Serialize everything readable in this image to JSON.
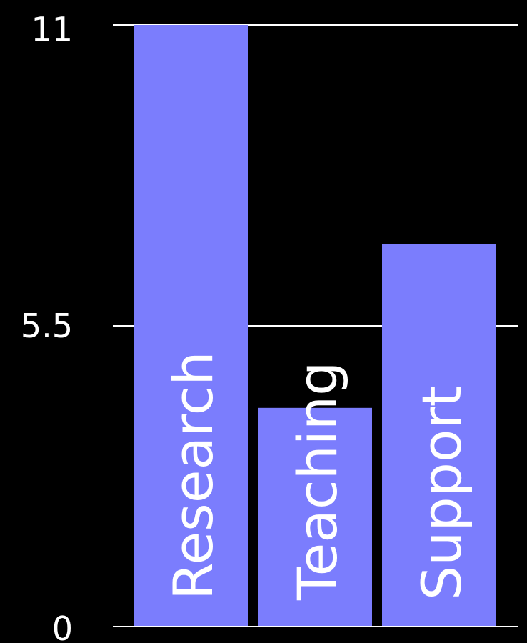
{
  "chart_data": {
    "type": "bar",
    "categories": [
      "Research",
      "Teaching",
      "Support"
    ],
    "values": [
      11,
      4,
      7
    ],
    "ylim": [
      0,
      11
    ],
    "yticks": [
      "0",
      "5.5",
      "11"
    ],
    "ytick_values": [
      0,
      5.5,
      11
    ],
    "grid": true,
    "title": "",
    "xlabel": "",
    "ylabel": ""
  },
  "colors": {
    "background": "#000000",
    "bar": "#7b7dfd",
    "grid": "#ffffff",
    "text": "#ffffff"
  }
}
